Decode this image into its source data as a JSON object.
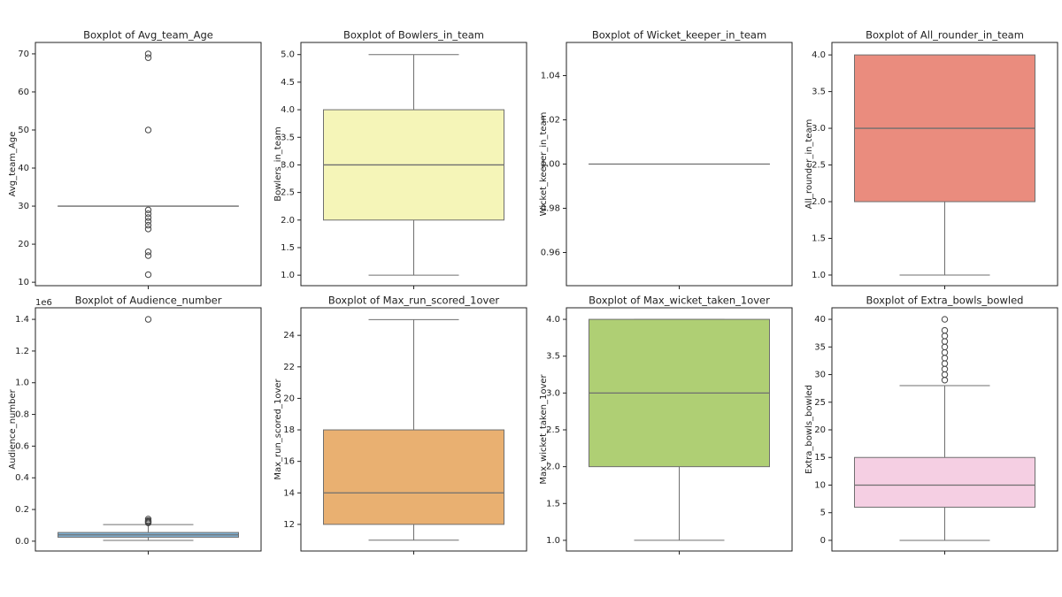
{
  "chart_data": [
    {
      "type": "box",
      "title": "Boxplot of Avg_team_Age",
      "ylabel": "Avg_team_Age",
      "color": "#8dd3c7",
      "ylim": [
        9.1,
        73.0
      ],
      "yticks": [
        10,
        20,
        30,
        40,
        50,
        60,
        70
      ],
      "whislo": 30,
      "q1": 30,
      "med": 30,
      "q3": 30,
      "whishi": 30,
      "outliers": [
        70,
        69,
        50,
        29,
        28,
        27,
        26,
        25,
        24,
        18,
        17,
        12
      ]
    },
    {
      "type": "box",
      "title": "Boxplot of Bowlers_in_team",
      "ylabel": "Bowlers_in_team",
      "color": "#f5f5b8",
      "ylim": [
        0.81,
        5.22
      ],
      "yticks": [
        {
          "value": 1,
          "label": "1.0"
        },
        1.5,
        {
          "value": 2,
          "label": "2.0"
        },
        2.5,
        {
          "value": 3,
          "label": "3.0"
        },
        3.5,
        {
          "value": 4,
          "label": "4.0"
        },
        4.5,
        {
          "value": 5,
          "label": "5.0"
        }
      ],
      "whislo": 1,
      "q1": 2,
      "med": 3,
      "q3": 4,
      "whishi": 5,
      "outliers": []
    },
    {
      "type": "box",
      "title": "Boxplot of Wicket_keeper_in_team",
      "ylabel": "Wicket_keeper_in_team",
      "color": "#bebada",
      "ylim": [
        0.945,
        1.055
      ],
      "yticks": [
        0.96,
        0.98,
        {
          "value": 1,
          "label": "1.00"
        },
        1.02,
        1.04
      ],
      "whislo": 1,
      "q1": 1,
      "med": 1,
      "q3": 1,
      "whishi": 1,
      "outliers": []
    },
    {
      "type": "box",
      "title": "Boxplot of All_rounder_in_team",
      "ylabel": "All_rounder_in_team",
      "color": "#ea8c7e",
      "ylim": [
        0.855,
        4.17
      ],
      "yticks": [
        {
          "value": 1,
          "label": "1.0"
        },
        1.5,
        {
          "value": 2,
          "label": "2.0"
        },
        2.5,
        {
          "value": 3,
          "label": "3.0"
        },
        3.5,
        {
          "value": 4,
          "label": "4.0"
        }
      ],
      "whislo": 1,
      "q1": 2,
      "med": 3,
      "q3": 4,
      "whishi": 4,
      "outliers": []
    },
    {
      "type": "box",
      "title": "Boxplot of Audience_number",
      "ylabel": "Audience_number",
      "y_offset_label": "1e6",
      "color": "#80b1d3",
      "ylim": [
        -0.062,
        1.473
      ],
      "yticks": [
        {
          "value": 0,
          "label": "0.0"
        },
        0.2,
        0.4,
        0.6,
        0.8,
        {
          "value": 1,
          "label": "1.0"
        },
        1.2,
        1.4
      ],
      "whislo": 0.005,
      "q1": 0.025,
      "med": 0.04,
      "q3": 0.055,
      "whishi": 0.105,
      "outliers": [
        1.4,
        0.14,
        0.13,
        0.125,
        0.12,
        0.115
      ]
    },
    {
      "type": "box",
      "title": "Boxplot of Max_run_scored_1over",
      "ylabel": "Max_run_scored_1over",
      "color": "#e9b071",
      "ylim": [
        10.31,
        25.75
      ],
      "yticks": [
        12,
        14,
        16,
        18,
        20,
        22,
        24
      ],
      "whislo": 11,
      "q1": 12,
      "med": 14,
      "q3": 18,
      "whishi": 25,
      "outliers": []
    },
    {
      "type": "box",
      "title": "Boxplot of Max_wicket_taken_1over",
      "ylabel": "Max_wicket_taken_1over",
      "color": "#afcf74",
      "ylim": [
        0.855,
        4.157
      ],
      "yticks": [
        {
          "value": 1,
          "label": "1.0"
        },
        1.5,
        {
          "value": 2,
          "label": "2.0"
        },
        2.5,
        {
          "value": 3,
          "label": "3.0"
        },
        3.5,
        {
          "value": 4,
          "label": "4.0"
        }
      ],
      "whislo": 1,
      "q1": 2,
      "med": 3,
      "q3": 4,
      "whishi": 4,
      "outliers": []
    },
    {
      "type": "box",
      "title": "Boxplot of Extra_bowls_bowled",
      "ylabel": "Extra_bowls_bowled",
      "color": "#f5cfe3",
      "ylim": [
        -1.93,
        42.09
      ],
      "yticks": [
        0,
        5,
        10,
        15,
        20,
        25,
        30,
        35,
        40
      ],
      "whislo": 0,
      "q1": 6,
      "med": 10,
      "q3": 15,
      "whishi": 28,
      "outliers": [
        29,
        30,
        31,
        32,
        33,
        34,
        35,
        36,
        37,
        38,
        40
      ]
    }
  ]
}
